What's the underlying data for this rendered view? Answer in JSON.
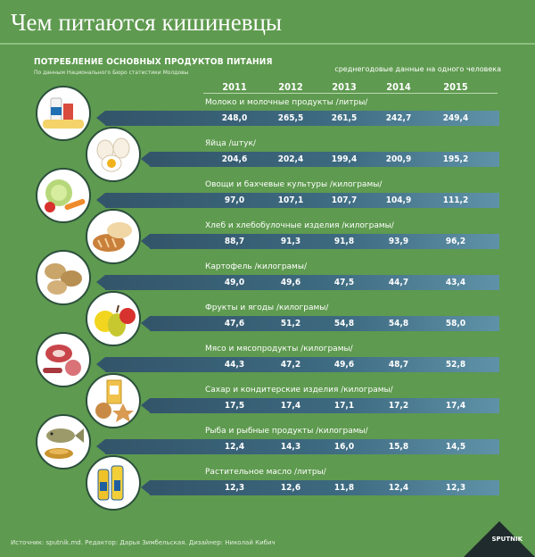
{
  "header": {
    "title": "Чем питаются кишиневцы",
    "subtitle": "ПОТРЕБЛЕНИЕ ОСНОВНЫХ ПРОДУКТОВ ПИТАНИЯ",
    "source_note": "По данным Национального Бюро статистики Молдовы",
    "per_capita_note": "среднегодовые данные на одного человека"
  },
  "footer": {
    "credits": "Источник: sputnik.md. Редактор: Дарья Зимбельская. Дизайнер: Николай Кибич",
    "logo": "SPUTNIK"
  },
  "chart_data": {
    "type": "table",
    "years": [
      "2011",
      "2012",
      "2013",
      "2014",
      "2015"
    ],
    "rows": [
      {
        "label": "Молоко и молочные продукты /литры/",
        "icon": "milk-icon",
        "values": [
          "248,0",
          "265,5",
          "261,5",
          "242,7",
          "249,4"
        ]
      },
      {
        "label": "Яйца /штук/",
        "icon": "eggs-icon",
        "values": [
          "204,6",
          "202,4",
          "199,4",
          "200,9",
          "195,2"
        ]
      },
      {
        "label": "Овощи и бахчевые культуры /килограмы/",
        "icon": "vegetables-icon",
        "values": [
          "97,0",
          "107,1",
          "107,7",
          "104,9",
          "111,2"
        ]
      },
      {
        "label": "Хлеб и хлебобулочные изделия /килограмы/",
        "icon": "bread-icon",
        "values": [
          "88,7",
          "91,3",
          "91,8",
          "93,9",
          "96,2"
        ]
      },
      {
        "label": "Картофель /килограмы/",
        "icon": "potatoes-icon",
        "values": [
          "49,0",
          "49,6",
          "47,5",
          "44,7",
          "43,4"
        ]
      },
      {
        "label": "Фрукты и ягоды /килограмы/",
        "icon": "fruits-icon",
        "values": [
          "47,6",
          "51,2",
          "54,8",
          "54,8",
          "58,0"
        ]
      },
      {
        "label": "Мясо и мясопродукты /килограмы/",
        "icon": "meat-icon",
        "values": [
          "44,3",
          "47,2",
          "49,6",
          "48,7",
          "52,8"
        ]
      },
      {
        "label": "Сахар и кондитерские изделия /килограмы/",
        "icon": "sugar-icon",
        "values": [
          "17,5",
          "17,4",
          "17,1",
          "17,2",
          "17,4"
        ]
      },
      {
        "label": "Рыба и рыбные продукты /килограмы/",
        "icon": "fish-icon",
        "values": [
          "12,4",
          "14,3",
          "16,0",
          "15,8",
          "14,5"
        ]
      },
      {
        "label": "Растительное масло /литры/",
        "icon": "oil-icon",
        "values": [
          "12,3",
          "12,6",
          "11,8",
          "12,4",
          "12,3"
        ]
      }
    ]
  }
}
